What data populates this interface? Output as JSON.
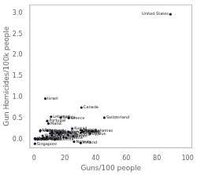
{
  "chart_data": {
    "type": "scatter",
    "xlabel": "Guns/100 people",
    "ylabel": "Gun Homicides/100k people",
    "xlim": [
      -3,
      103
    ],
    "ylim": [
      -0.2,
      3.2
    ],
    "xticks": [
      0,
      20,
      40,
      60,
      80,
      100
    ],
    "yticks": [
      {
        "value": 0.0,
        "label": "0.0"
      },
      0.5,
      {
        "value": 1.0,
        "label": "1.0"
      },
      1.5,
      {
        "value": 2.0,
        "label": "2.0"
      },
      2.5,
      {
        "value": 3.0,
        "label": "3.0"
      }
    ],
    "color": "#1a1a2e",
    "grid": false,
    "annotations": [
      "United States",
      "Israel",
      "Canada",
      "Switzerland",
      "Lebanon",
      "Serbia",
      "Greece",
      "Portugal",
      "Malta",
      "Kuwait",
      "Iceland",
      "Norway",
      "Cyprus",
      "Bahrain",
      "Belgium",
      "Finland",
      "Bahamas",
      "Austria",
      "France",
      "New Zealand",
      "Ireland",
      "Libya",
      "Italy",
      "Jordan",
      "Hong Kong",
      "Singapore",
      "Sweden",
      "Germany",
      "Denmark",
      "Netherlands",
      "Spain",
      "Australia",
      "Japan",
      "South Korea",
      "England",
      "Scotland",
      "Czech Republic",
      "Hungary",
      "Poland",
      "Oman",
      "Qatar",
      "Mauritius",
      "Slovenia",
      "Croatia",
      "Slovakia",
      "UAE"
    ],
    "x": [
      88.8,
      7.3,
      30.8,
      45.7,
      11.0,
      17.3,
      22.5,
      8.5,
      9.3,
      24.8,
      30.3,
      26.0,
      36.4,
      11.5,
      17.2,
      32.0,
      38.0,
      30.4,
      31.2,
      22.6,
      8.6,
      4.1,
      11.9,
      11.5,
      0.5,
      0.5,
      31.6,
      30.3,
      12.0,
      3.9,
      10.4,
      15.0,
      0.6,
      1.1,
      6.2,
      5.5,
      16.3,
      5.5,
      1.3,
      25.5,
      19.2,
      2.5,
      13.5,
      21.0,
      8.3,
      22.1
    ],
    "values": [
      2.97,
      0.97,
      0.76,
      0.52,
      0.54,
      0.52,
      0.51,
      0.44,
      0.38,
      0.26,
      -0.08,
      -0.05,
      0.14,
      0.19,
      0.17,
      0.18,
      0.2,
      0.22,
      0.21,
      0.18,
      0.21,
      0.22,
      0.16,
      0.1,
      0.03,
      -0.1,
      0.19,
      0.16,
      0.15,
      0.2,
      0.15,
      0.16,
      0.01,
      0.01,
      0.04,
      0.03,
      0.12,
      0.09,
      0.02,
      0.08,
      0.05,
      0.01,
      0.0,
      0.04,
      0.06,
      0.1
    ]
  }
}
